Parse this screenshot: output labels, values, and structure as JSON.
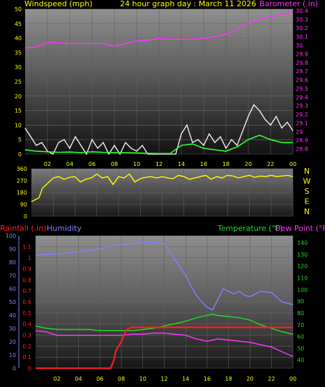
{
  "header": {
    "left_title": "Windspeed (mph)",
    "center_title": "24 hour graph day : March 11 2026",
    "right_title": "Barometer (.in)"
  },
  "colors": {
    "background": "#000000",
    "tick_text": "#ffff00",
    "barometer": "#ff33ff",
    "wind": "#ffffff",
    "wind_avg": "#33ff33",
    "direction": "#ffff00",
    "rainfall": "#ff2020",
    "humidity": "#8080ff",
    "temperature": "#22dd22",
    "dewpoint": "#ff33ff",
    "compass": "#ffff00"
  },
  "chart_data": [
    {
      "type": "line",
      "name": "wind-barometer",
      "x_tick_labels": [
        "02",
        "04",
        "06",
        "08",
        "10",
        "12",
        "14",
        "16",
        "18",
        "20",
        "22",
        "00"
      ],
      "left_axis": {
        "label": "Windspeed (mph)",
        "ticks": [
          "0",
          "5",
          "10",
          "15",
          "20",
          "25",
          "30",
          "35",
          "40",
          "45",
          "50"
        ],
        "ylim": [
          0,
          50
        ]
      },
      "right_axis": {
        "label": "Barometer (.in)",
        "ticks": [
          "28.8",
          "28.9",
          "29",
          "29.1",
          "29.2",
          "29.3",
          "29.4",
          "29.5",
          "29.6",
          "29.7",
          "29.8",
          "29.9",
          "30",
          "30.1",
          "30.2",
          "30.3",
          "30.4"
        ],
        "ylim": [
          28.74,
          30.42
        ]
      },
      "series": [
        {
          "name": "Barometer (.in)",
          "x": [
            0,
            1,
            2,
            3,
            4,
            5,
            6,
            7,
            8,
            9,
            10,
            11,
            12,
            13,
            14,
            15,
            16,
            17,
            18,
            19,
            20,
            21,
            22,
            23,
            24
          ],
          "y": [
            29.97,
            29.98,
            30.03,
            30.03,
            30.02,
            30.02,
            30.02,
            30.02,
            29.99,
            30.02,
            30.05,
            30.06,
            30.08,
            30.07,
            30.07,
            30.07,
            30.08,
            30.1,
            30.13,
            30.19,
            30.25,
            30.3,
            30.33,
            30.36,
            30.39
          ]
        },
        {
          "name": "Windspeed (mph)",
          "x": [
            0,
            0.5,
            1,
            1.5,
            2,
            2.5,
            3,
            3.5,
            4,
            4.5,
            5,
            5.5,
            6,
            6.5,
            7,
            7.5,
            8,
            8.5,
            9,
            9.5,
            10,
            10.5,
            11,
            11.5,
            12,
            12.5,
            13,
            13.5,
            14,
            14.5,
            15,
            15.5,
            16,
            16.5,
            17,
            17.5,
            18,
            18.5,
            19,
            19.5,
            20,
            20.5,
            21,
            21.5,
            22,
            22.5,
            23,
            23.5,
            24
          ],
          "y": [
            9,
            6,
            3,
            4,
            1,
            0,
            4,
            5,
            2,
            6,
            3,
            0,
            5,
            2,
            4,
            0,
            3,
            0,
            4,
            2,
            1,
            3,
            0,
            0,
            0,
            0,
            0,
            0,
            7,
            10,
            4,
            5,
            3,
            7,
            4,
            6,
            2,
            5,
            3,
            8,
            13,
            17,
            15,
            12,
            10,
            13,
            9,
            11,
            8
          ]
        },
        {
          "name": "Average wind",
          "x": [
            0,
            1,
            2,
            3,
            4,
            5,
            6,
            7,
            8,
            9,
            10,
            11,
            12,
            13,
            14,
            15,
            16,
            17,
            18,
            19,
            20,
            21,
            22,
            23,
            24
          ],
          "y": [
            1.5,
            1,
            0.8,
            0.6,
            0.7,
            0.5,
            0.8,
            0.6,
            0.5,
            0.5,
            0.4,
            0.3,
            0.2,
            0.2,
            3,
            3.5,
            2,
            1.5,
            1,
            2.5,
            5,
            6.5,
            5,
            4,
            4
          ]
        }
      ]
    },
    {
      "type": "line",
      "name": "wind-direction",
      "left_axis": {
        "ticks": [
          "0",
          "90",
          "180",
          "270",
          "360"
        ],
        "ylim": [
          0,
          360
        ]
      },
      "compass_labels": [
        "N",
        "W",
        "S",
        "E",
        "N"
      ],
      "series": [
        {
          "name": "Wind direction",
          "x": [
            0,
            0.7,
            1,
            1.5,
            2,
            2.5,
            3,
            3.5,
            4,
            4.5,
            5,
            5.5,
            6,
            6.5,
            7,
            7.5,
            8,
            8.5,
            9,
            9.5,
            10,
            10.5,
            11,
            11.5,
            12,
            12.5,
            13,
            13.5,
            14,
            14.5,
            15,
            15.5,
            16,
            16.5,
            17,
            17.5,
            18,
            18.5,
            19,
            19.5,
            20,
            20.5,
            21,
            21.5,
            22,
            22.5,
            23,
            23.5,
            24
          ],
          "y": [
            110,
            140,
            210,
            250,
            290,
            300,
            280,
            295,
            300,
            260,
            280,
            290,
            320,
            290,
            300,
            240,
            300,
            290,
            320,
            260,
            285,
            295,
            300,
            290,
            300,
            290,
            285,
            310,
            300,
            280,
            290,
            300,
            310,
            280,
            300,
            290,
            310,
            305,
            290,
            300,
            310,
            295,
            305,
            300,
            310,
            300,
            305,
            310,
            300
          ]
        }
      ]
    },
    {
      "type": "line",
      "name": "rain-humidity-temperature",
      "x_tick_labels": [
        "02",
        "04",
        "06",
        "08",
        "10",
        "12",
        "14",
        "16",
        "18",
        "20",
        "22",
        "00"
      ],
      "left_axis": {
        "label": "Rainfall (.in)",
        "ticks": [
          "0",
          "0.1",
          "0.2",
          "0.3",
          "0.4",
          "0.5",
          "0.6",
          "0.7",
          "0.8",
          "0.9",
          "1",
          "1.1"
        ],
        "ylim": [
          0,
          1.2
        ]
      },
      "humidity_axis": {
        "label": "Humidity",
        "ticks": [
          "0",
          "10",
          "20",
          "30",
          "40",
          "50",
          "60",
          "70",
          "80",
          "90",
          "100"
        ],
        "ylim": [
          0,
          100
        ]
      },
      "right_axis": {
        "label": "Temperature (°F)",
        "ticks": [
          "40",
          "50",
          "60",
          "70",
          "80",
          "90",
          "100",
          "110",
          "120",
          "130",
          "140"
        ],
        "ylim": [
          33,
          146
        ]
      },
      "right_labels": {
        "temperature": "Temperature (°F)",
        "dewpoint": "Dew Point (°F)"
      },
      "series": [
        {
          "name": "Humidity",
          "x": [
            0,
            1,
            2,
            3,
            4,
            5,
            6,
            7,
            8,
            9,
            10,
            11,
            12,
            13,
            14,
            14.5,
            15,
            15.5,
            16,
            16.5,
            17,
            17.5,
            18,
            18.5,
            19,
            19.5,
            20,
            20.5,
            21,
            22,
            23,
            24
          ],
          "y": [
            85,
            86,
            86,
            87,
            88,
            89,
            90,
            92,
            93,
            94,
            95,
            95,
            94,
            82,
            70,
            62,
            55,
            50,
            46,
            44,
            52,
            60,
            58,
            56,
            58,
            55,
            54,
            56,
            58,
            57,
            50,
            48
          ]
        },
        {
          "name": "Rainfall (.in)",
          "x": [
            0,
            5,
            6,
            7,
            7.3,
            7.5,
            8,
            8.3,
            8.5,
            9,
            24
          ],
          "y": [
            0,
            0,
            0,
            0,
            0.07,
            0.16,
            0.24,
            0.31,
            0.35,
            0.37,
            0.37
          ]
        },
        {
          "name": "Temperature (°F)",
          "x": [
            0,
            1,
            2,
            3,
            4,
            5,
            6,
            7,
            8,
            9,
            10,
            11,
            12,
            13,
            14,
            15,
            16,
            16.5,
            17,
            18,
            19,
            20,
            21,
            22,
            23,
            24
          ],
          "y": [
            69,
            67,
            66,
            66,
            66,
            66,
            65,
            65,
            65,
            65,
            66,
            67,
            69,
            71,
            73,
            76,
            78,
            79,
            78,
            77,
            76,
            74,
            70,
            67,
            64,
            62
          ]
        },
        {
          "name": "Dew Point (°F)",
          "x": [
            0,
            1,
            2,
            3,
            4,
            5,
            6,
            7,
            8,
            9,
            10,
            11,
            12,
            13,
            14,
            15,
            16,
            17,
            18,
            19,
            20,
            21,
            22,
            23,
            24
          ],
          "y": [
            65,
            64,
            61,
            61,
            61,
            61,
            61,
            61,
            61,
            62,
            62,
            63,
            63,
            62,
            61,
            58,
            56,
            58,
            57,
            56,
            55,
            53,
            51,
            47,
            43
          ]
        }
      ]
    }
  ]
}
